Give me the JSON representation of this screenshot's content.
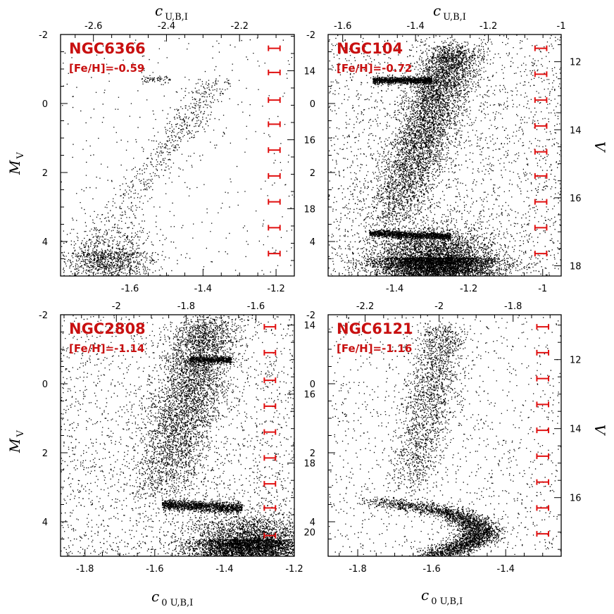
{
  "figure": {
    "bottom_xlabel": {
      "main": "c",
      "sub": "0 U,B,I"
    },
    "top_xlabel": {
      "main": "c",
      "sub": "U,B,I"
    },
    "left_ylabel": {
      "main": "M",
      "sub": "V"
    },
    "right_ylabel": "V"
  },
  "chart_data": [
    {
      "type": "scatter",
      "cluster": "NGC6366",
      "metallicity": "[Fe/H]=-0.59",
      "xlim": [
        -1.79,
        -1.15
      ],
      "ylim": [
        5,
        -2
      ],
      "xticks": [
        -1.6,
        -1.4,
        -1.2
      ],
      "xticklabels": [
        "-1.6",
        "-1.4",
        "-1.2"
      ],
      "yticks": [
        -2,
        0,
        2,
        4
      ],
      "yticklabels": [
        "-2",
        "0",
        "2",
        "4"
      ],
      "top_xticks": [
        -2.6,
        -2.4,
        -2.2
      ],
      "top_xticklabels": [
        "-2.6",
        "-2.4",
        "-2.2"
      ],
      "top_xlim": [
        -2.69,
        -2.05
      ],
      "right_yticks": [
        14,
        16,
        18
      ],
      "right_yticklabels": [
        "14",
        "16",
        "18"
      ],
      "right_ylim": [
        12.95,
        19.95
      ],
      "errorbar_x": -1.205,
      "errorbar_y": [
        -1.6,
        -0.9,
        -0.1,
        0.6,
        1.35,
        2.1,
        2.85,
        3.6,
        4.35
      ],
      "errorbar_halfwidth": 0.012,
      "color": "#000000",
      "errorbar_color": "#e01010",
      "density": {
        "total": 2300,
        "features": [
          {
            "kind": "blob",
            "x": -1.66,
            "y": 4.3,
            "sx": 0.06,
            "sy": 0.45,
            "w": 0.55
          },
          {
            "kind": "rgb",
            "x0": -1.66,
            "y0": 3.6,
            "x1": -1.36,
            "y1": -0.7,
            "sx": 0.028,
            "w": 0.25
          },
          {
            "kind": "hb",
            "x0": -1.57,
            "x1": -1.49,
            "y": -0.72,
            "sy": 0.05,
            "w": 0.03
          },
          {
            "kind": "field",
            "w": 0.17
          }
        ]
      }
    },
    {
      "type": "scatter",
      "cluster": "NGC104",
      "metallicity": "[Fe/H]=-0.72",
      "xlim": [
        -1.58,
        -0.95
      ],
      "ylim": [
        5,
        -2
      ],
      "xticks": [
        -1.4,
        -1.2,
        -1
      ],
      "xticklabels": [
        "-1.4",
        "-1.2",
        "-1"
      ],
      "yticks": [
        -2,
        0,
        2,
        4
      ],
      "yticklabels": [
        "-2",
        "0",
        "2",
        "4"
      ],
      "top_xticks": [
        -1.6,
        -1.4,
        -1.2,
        -1
      ],
      "top_xticklabels": [
        "-1.6",
        "-1.4",
        "-1.2",
        "-1"
      ],
      "top_xlim": [
        -1.64,
        -1.0
      ],
      "right_yticks": [
        12,
        14,
        16,
        18
      ],
      "right_yticklabels": [
        "12",
        "14",
        "16",
        "18"
      ],
      "right_ylim": [
        11.2,
        18.3
      ],
      "errorbar_x": -1.005,
      "errorbar_y": [
        -1.6,
        -0.85,
        -0.1,
        0.65,
        1.4,
        2.1,
        2.85,
        3.6,
        4.35
      ],
      "errorbar_halfwidth": 0.012,
      "color": "#000000",
      "errorbar_color": "#e01010",
      "density": {
        "total": 17000,
        "features": [
          {
            "kind": "blob",
            "x": -1.29,
            "y": 4.45,
            "sx": 0.085,
            "sy": 0.42,
            "w": 0.42
          },
          {
            "kind": "sgb",
            "x0": -1.47,
            "x1": -1.25,
            "y": 3.75,
            "sy": 0.05,
            "w": 0.08
          },
          {
            "kind": "rgb",
            "x0": -1.41,
            "y0": 3.5,
            "x1": -1.24,
            "y1": -1.6,
            "sx": 0.04,
            "w": 0.28
          },
          {
            "kind": "hb",
            "x0": -1.46,
            "x1": -1.3,
            "y": -0.68,
            "sy": 0.05,
            "w": 0.07
          },
          {
            "kind": "field",
            "w": 0.15
          }
        ]
      }
    },
    {
      "type": "scatter",
      "cluster": "NGC2808",
      "metallicity": "[Fe/H]=-1.14",
      "xlim": [
        -1.87,
        -1.2
      ],
      "ylim": [
        5,
        -2
      ],
      "xticks": [
        -1.8,
        -1.6,
        -1.4,
        -1.2
      ],
      "xticklabels": [
        "-1.8",
        "-1.6",
        "-1.4",
        "-1.2"
      ],
      "yticks": [
        -2,
        0,
        2,
        4
      ],
      "yticklabels": [
        "-2",
        "0",
        "2",
        "4"
      ],
      "top_xticks": [
        -2,
        -1.8,
        -1.6
      ],
      "top_xticklabels": [
        "-2",
        "-1.8",
        "-1.6"
      ],
      "top_xlim": [
        -2.16,
        -1.49
      ],
      "right_yticks": [
        14,
        16,
        18,
        20
      ],
      "right_yticklabels": [
        "14",
        "16",
        "18",
        "20"
      ],
      "right_ylim": [
        13.7,
        20.7
      ],
      "errorbar_x": -1.27,
      "errorbar_y": [
        -1.65,
        -0.9,
        -0.1,
        0.65,
        1.4,
        2.15,
        2.9,
        3.6,
        4.4
      ],
      "errorbar_halfwidth": 0.012,
      "color": "#000000",
      "errorbar_color": "#e01010",
      "density": {
        "total": 13500,
        "features": [
          {
            "kind": "blob",
            "x": -1.33,
            "y": 4.5,
            "sx": 0.085,
            "sy": 0.38,
            "w": 0.38
          },
          {
            "kind": "sgb",
            "x0": -1.58,
            "x1": -1.35,
            "y": 3.5,
            "sy": 0.08,
            "w": 0.1
          },
          {
            "kind": "rgb",
            "x0": -1.59,
            "y0": 3.3,
            "x1": -1.44,
            "y1": -1.8,
            "sx": 0.05,
            "w": 0.3
          },
          {
            "kind": "hb",
            "x0": -1.5,
            "x1": -1.38,
            "y": -0.7,
            "sy": 0.05,
            "w": 0.04
          },
          {
            "kind": "field",
            "w": 0.18
          }
        ]
      }
    },
    {
      "type": "scatter",
      "cluster": "NGC6121",
      "metallicity": "[Fe/H]=-1.16",
      "xlim": [
        -1.88,
        -1.25
      ],
      "ylim": [
        5,
        -2
      ],
      "xticks": [
        -1.8,
        -1.6,
        -1.4
      ],
      "xticklabels": [
        "-1.8",
        "-1.6",
        "-1.4"
      ],
      "yticks": [
        -2,
        0,
        2,
        4
      ],
      "yticklabels": [
        "-2",
        "0",
        "2",
        "4"
      ],
      "top_xticks": [
        -2.2,
        -2,
        -1.8
      ],
      "top_xticklabels": [
        "-2.2",
        "-2",
        "-1.8"
      ],
      "top_xlim": [
        -2.3,
        -1.67
      ],
      "right_yticks": [
        12,
        14,
        16
      ],
      "right_yticklabels": [
        "12",
        "14",
        "16"
      ],
      "right_ylim": [
        10.7,
        17.7
      ],
      "errorbar_x": -1.3,
      "errorbar_y": [
        -1.65,
        -0.9,
        -0.15,
        0.6,
        1.35,
        2.1,
        2.85,
        3.6,
        4.35
      ],
      "errorbar_halfwidth": 0.012,
      "color": "#000000",
      "errorbar_color": "#e01010",
      "density": {
        "total": 6000,
        "features": [
          {
            "kind": "hook",
            "w": 0.5
          },
          {
            "kind": "rgb",
            "x0": -1.66,
            "y0": 3.2,
            "x1": -1.57,
            "y1": -1.6,
            "sx": 0.035,
            "w": 0.3
          },
          {
            "kind": "field",
            "w": 0.2
          }
        ]
      }
    }
  ]
}
